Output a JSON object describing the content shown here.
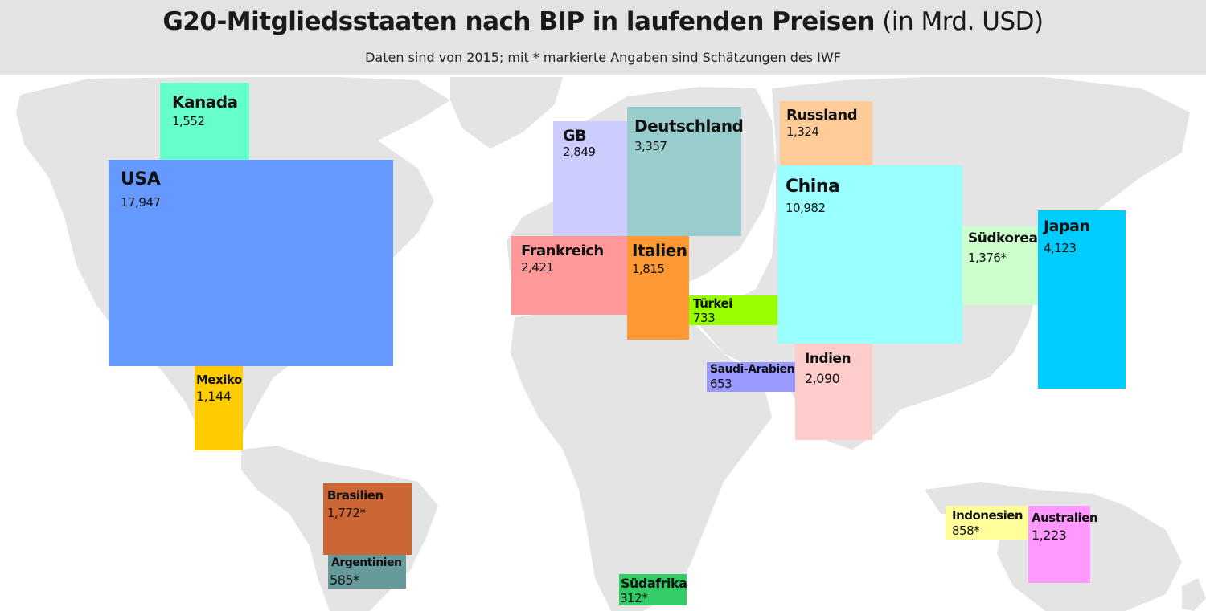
{
  "header": {
    "title": "G20-Mitgliedsstaaten nach BIP in laufenden Preisen",
    "title_unit": "(in Mrd. USD)",
    "subtitle": "Daten sind von 2015; mit * markierte Angaben sind Schätzungen des IWF"
  },
  "colors": {
    "header_bg": "#e3e3e3",
    "map_land": "#e4e4e4",
    "background": "#ffffff"
  },
  "countries": [
    {
      "id": "usa",
      "name": "USA",
      "value": "17,947",
      "estimate": false,
      "color": "#6699ff"
    },
    {
      "id": "kanada",
      "name": "Kanada",
      "value": "1,552",
      "estimate": false,
      "color": "#66ffcc"
    },
    {
      "id": "mexiko",
      "name": "Mexiko",
      "value": "1,144",
      "estimate": false,
      "color": "#ffcc00"
    },
    {
      "id": "brasilien",
      "name": "Brasilien",
      "value": "1,772*",
      "estimate": true,
      "color": "#cc6633"
    },
    {
      "id": "argentinien",
      "name": "Argentinien",
      "value": "585*",
      "estimate": true,
      "color": "#669999"
    },
    {
      "id": "gb",
      "name": "GB",
      "value": "2,849",
      "estimate": false,
      "color": "#ccccff"
    },
    {
      "id": "deutschland",
      "name": "Deutschland",
      "value": "3,357",
      "estimate": false,
      "color": "#99cccc"
    },
    {
      "id": "frankreich",
      "name": "Frankreich",
      "value": "2,421",
      "estimate": false,
      "color": "#ff9999"
    },
    {
      "id": "italien",
      "name": "Italien",
      "value": "1,815",
      "estimate": false,
      "color": "#ff9933"
    },
    {
      "id": "tuerkei",
      "name": "Türkei",
      "value": "733",
      "estimate": false,
      "color": "#99ff00"
    },
    {
      "id": "saudi-arabien",
      "name": "Saudi-Arabien",
      "value": "653",
      "estimate": false,
      "color": "#9999ff"
    },
    {
      "id": "suedafrika",
      "name": "Südafrika",
      "value": "312*",
      "estimate": true,
      "color": "#33cc66"
    },
    {
      "id": "russland",
      "name": "Russland",
      "value": "1,324",
      "estimate": false,
      "color": "#ffcc99"
    },
    {
      "id": "china",
      "name": "China",
      "value": "10,982",
      "estimate": false,
      "color": "#99ffff"
    },
    {
      "id": "indien",
      "name": "Indien",
      "value": "2,090",
      "estimate": false,
      "color": "#ffcccc"
    },
    {
      "id": "suedkorea",
      "name": "Südkorea",
      "value": "1,376*",
      "estimate": true,
      "color": "#ccffcc"
    },
    {
      "id": "japan",
      "name": "Japan",
      "value": "4,123",
      "estimate": false,
      "color": "#00ccff"
    },
    {
      "id": "indonesien",
      "name": "Indonesien",
      "value": "858*",
      "estimate": true,
      "color": "#ffff99"
    },
    {
      "id": "australien",
      "name": "Australien",
      "value": "1,223",
      "estimate": false,
      "color": "#ff99ff"
    }
  ]
}
